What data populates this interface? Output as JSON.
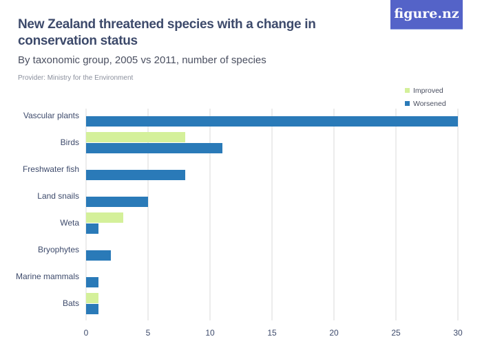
{
  "title": "New Zealand threatened species with a change in conservation status",
  "subtitle": "By taxonomic group, 2005 vs 2011, number of species",
  "provider": "Provider: Ministry for the Environment",
  "logo": "figure.nz",
  "chart_data": {
    "type": "bar",
    "orientation": "horizontal",
    "categories": [
      "Vascular plants",
      "Birds",
      "Freshwater fish",
      "Land snails",
      "Weta",
      "Bryophytes",
      "Marine mammals",
      "Bats"
    ],
    "series": [
      {
        "name": "Improved",
        "color": "#d4f09a",
        "values": [
          0,
          8,
          0,
          0,
          3,
          0,
          0,
          1
        ]
      },
      {
        "name": "Worsened",
        "color": "#2a7ab8",
        "values": [
          30,
          11,
          8,
          5,
          1,
          2,
          1,
          1
        ]
      }
    ],
    "xlim": [
      0,
      30
    ],
    "xticks": [
      0,
      5,
      10,
      15,
      20,
      25,
      30
    ],
    "grid": true,
    "legend": "top-right"
  }
}
